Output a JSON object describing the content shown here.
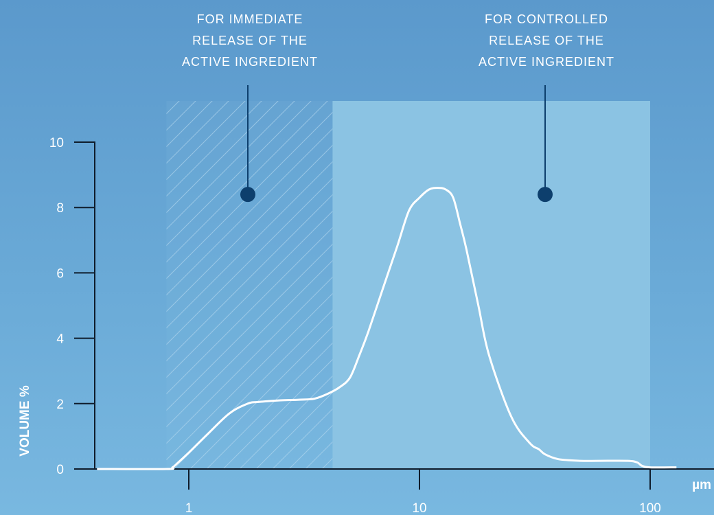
{
  "chart_data": {
    "type": "line",
    "title": "",
    "xlabel": "µm",
    "ylabel": "VOLUME %",
    "xscale": "log",
    "xlim": [
      0.4,
      130
    ],
    "ylim": [
      0,
      10
    ],
    "x_ticks": [
      1,
      10,
      100
    ],
    "x_tick_labels": [
      "1",
      "10",
      "100"
    ],
    "y_ticks": [
      0,
      2,
      4,
      6,
      8,
      10
    ],
    "y_tick_labels": [
      "0",
      "2",
      "4",
      "6",
      "8",
      "10"
    ],
    "grid": false,
    "series": [
      {
        "x": [
          0.4,
          0.8,
          0.85,
          0.9,
          1.0,
          1.2,
          1.5,
          1.8,
          2.0,
          2.5,
          3.0,
          3.5,
          4.0,
          4.5,
          5.0,
          5.5,
          6.0,
          7.0,
          8.0,
          9.0,
          10.0,
          11.0,
          12.0,
          13.0,
          14.0,
          15.0,
          16.0,
          18.0,
          20.0,
          25.0,
          30.0,
          33.0,
          35.0,
          40.0,
          50.0,
          60.0,
          80.0,
          88.0,
          92.0,
          100.0,
          130.0
        ],
        "y": [
          0.0,
          0.0,
          0.05,
          0.2,
          0.5,
          1.05,
          1.7,
          2.0,
          2.05,
          2.1,
          2.12,
          2.15,
          2.3,
          2.5,
          2.8,
          3.5,
          4.2,
          5.6,
          6.8,
          7.9,
          8.3,
          8.55,
          8.6,
          8.55,
          8.3,
          7.5,
          6.7,
          5.0,
          3.5,
          1.6,
          0.8,
          0.6,
          0.45,
          0.3,
          0.25,
          0.25,
          0.25,
          0.2,
          0.1,
          0.05,
          0.05
        ]
      }
    ],
    "regions": [
      {
        "label": "FOR IMMEDIATE RELEASE OF THE ACTIVE INGREDIENT",
        "lines": [
          "FOR IMMEDIATE",
          "RELEASE OF THE",
          "ACTIVE INGREDIENT"
        ],
        "x_range": [
          0.8,
          4.2
        ],
        "style": "hatched",
        "marker_x": 1.8,
        "marker_y": 8.4
      },
      {
        "label": "FOR CONTROLLED RELEASE OF THE ACTIVE INGREDIENT",
        "lines": [
          "FOR CONTROLLED",
          "RELEASE OF THE",
          "ACTIVE INGREDIENT"
        ],
        "x_range": [
          4.2,
          100
        ],
        "style": "filled",
        "marker_x": 35,
        "marker_y": 8.4
      }
    ]
  },
  "colors": {
    "region_fill": "#8bc3e3",
    "marker": "#0d3f6d",
    "axis": "#0f1c2b",
    "curve": "#ffffff",
    "hatch": "#b8d9ef"
  }
}
